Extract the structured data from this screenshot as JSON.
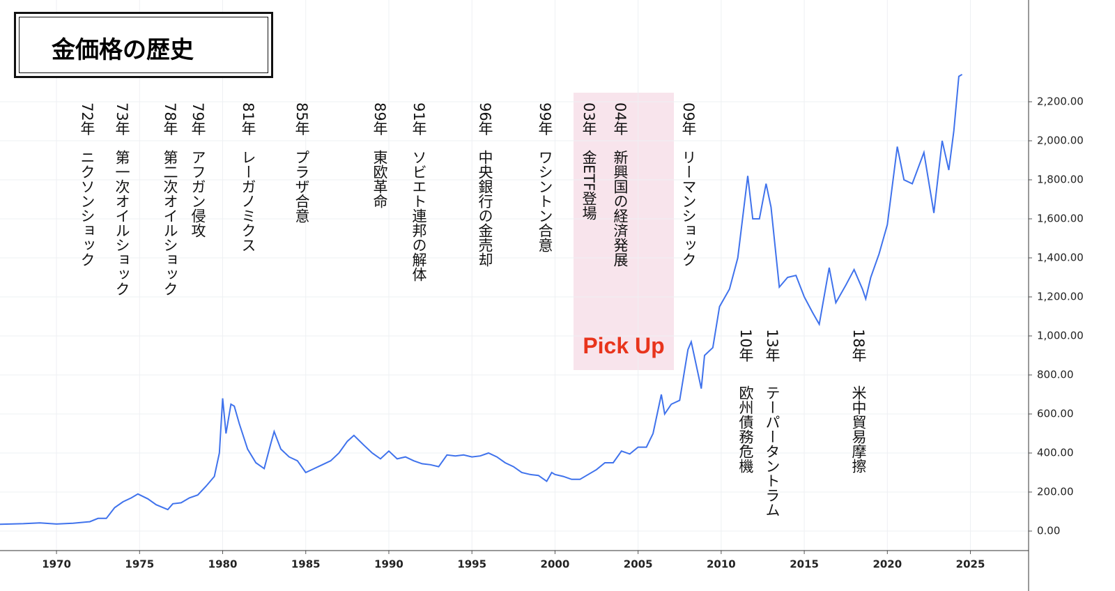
{
  "chart_data": {
    "type": "line",
    "title": "金価格の歴史",
    "x": [
      1966.6,
      1968,
      1969,
      1970,
      1971,
      1972,
      1972.5,
      1973,
      1973.5,
      1974,
      1974.5,
      1974.9,
      1975.5,
      1976,
      1976.7,
      1977,
      1977.5,
      1978,
      1978.5,
      1979,
      1979.5,
      1979.8,
      1980,
      1980.2,
      1980.5,
      1980.7,
      1981,
      1981.5,
      1982,
      1982.5,
      1982.9,
      1983.1,
      1983.5,
      1984,
      1984.5,
      1985,
      1985.5,
      1986,
      1986.5,
      1987,
      1987.5,
      1987.9,
      1988.5,
      1989,
      1989.5,
      1990,
      1990.5,
      1991,
      1991.5,
      1992,
      1992.5,
      1993,
      1993.5,
      1994,
      1994.5,
      1995,
      1995.5,
      1996,
      1996.5,
      1997,
      1997.5,
      1998,
      1998.5,
      1999,
      1999.5,
      1999.8,
      2000,
      2000.5,
      2001,
      2001.5,
      2002,
      2002.5,
      2003,
      2003.5,
      2004,
      2004.5,
      2005,
      2005.5,
      2005.9,
      2006.4,
      2006.6,
      2007,
      2007.5,
      2008,
      2008.2,
      2008.8,
      2009,
      2009.5,
      2009.9,
      2010.5,
      2011,
      2011.6,
      2011.9,
      2012.3,
      2012.7,
      2013,
      2013.5,
      2014,
      2014.5,
      2015,
      2015.5,
      2015.9,
      2016.5,
      2016.9,
      2017.5,
      2018,
      2018.5,
      2018.7,
      2019,
      2019.5,
      2020,
      2020.6,
      2021,
      2021.5,
      2022.2,
      2022.8,
      2023.3,
      2023.7,
      2024,
      2024.3,
      2024.5
    ],
    "values": [
      35,
      38,
      42,
      36,
      40,
      48,
      65,
      65,
      120,
      150,
      170,
      190,
      165,
      135,
      110,
      140,
      145,
      170,
      185,
      230,
      280,
      400,
      680,
      500,
      650,
      640,
      550,
      420,
      350,
      320,
      450,
      510,
      420,
      380,
      360,
      300,
      320,
      340,
      360,
      400,
      460,
      490,
      440,
      400,
      370,
      410,
      370,
      380,
      360,
      345,
      340,
      330,
      390,
      385,
      390,
      380,
      385,
      400,
      380,
      350,
      330,
      300,
      290,
      285,
      255,
      300,
      290,
      280,
      265,
      265,
      290,
      315,
      350,
      350,
      410,
      395,
      430,
      430,
      500,
      700,
      600,
      650,
      670,
      930,
      970,
      730,
      900,
      940,
      1150,
      1240,
      1400,
      1820,
      1600,
      1600,
      1780,
      1660,
      1250,
      1300,
      1310,
      1200,
      1120,
      1060,
      1350,
      1170,
      1260,
      1340,
      1240,
      1190,
      1300,
      1420,
      1570,
      1970,
      1800,
      1780,
      1940,
      1630,
      2000,
      1850,
      2050,
      2330,
      2340
    ],
    "color": "#3f72ec",
    "xlim": [
      1966.6,
      2028.5
    ],
    "xticks": [
      1970,
      1975,
      1980,
      1985,
      1990,
      1995,
      2000,
      2005,
      2010,
      2015,
      2020,
      2025
    ],
    "ylim": [
      -100,
      2700
    ],
    "yticks": [
      {
        "value": 0,
        "label": "0.00"
      },
      {
        "value": 200,
        "label": "200.00"
      },
      {
        "value": 400,
        "label": "400.00"
      },
      {
        "value": 600,
        "label": "600.00"
      },
      {
        "value": 800,
        "label": "800.00"
      },
      {
        "value": 1000,
        "label": "1,000.00"
      },
      {
        "value": 1200,
        "label": "1,200.00"
      },
      {
        "value": 1400,
        "label": "1,400.00"
      },
      {
        "value": 1600,
        "label": "1,600.00"
      },
      {
        "value": 1800,
        "label": "1,800.00"
      },
      {
        "value": 2000,
        "label": "2,000.00"
      },
      {
        "value": 2200,
        "label": "2,200.00"
      }
    ],
    "grid": true,
    "annotations": [
      {
        "year": "72年",
        "event": "ニクソンショック"
      },
      {
        "year": "73年",
        "event": "第一次オイルショック"
      },
      {
        "year": "78年",
        "event": "第二次オイルショック"
      },
      {
        "year": "79年",
        "event": "アフガン侵攻"
      },
      {
        "year": "81年",
        "event": "レーガノミクス"
      },
      {
        "year": "85年",
        "event": "プラザ合意"
      },
      {
        "year": "89年",
        "event": "東欧革命"
      },
      {
        "year": "91年",
        "event": "ソビエト連邦の解体"
      },
      {
        "year": "96年",
        "event": "中央銀行の金売却"
      },
      {
        "year": "99年",
        "event": "ワシントン合意"
      },
      {
        "year": "03年",
        "event": "金ETF登場"
      },
      {
        "year": "04年",
        "event": "新興国の経済発展"
      },
      {
        "year": "09年",
        "event": "リーマンショック"
      },
      {
        "year": "10年",
        "event": "欧州債務危機"
      },
      {
        "year": "13年",
        "event": "テーパータントラム"
      },
      {
        "year": "18年",
        "event": "米中貿易摩擦"
      }
    ],
    "highlight": "Pick Up"
  }
}
